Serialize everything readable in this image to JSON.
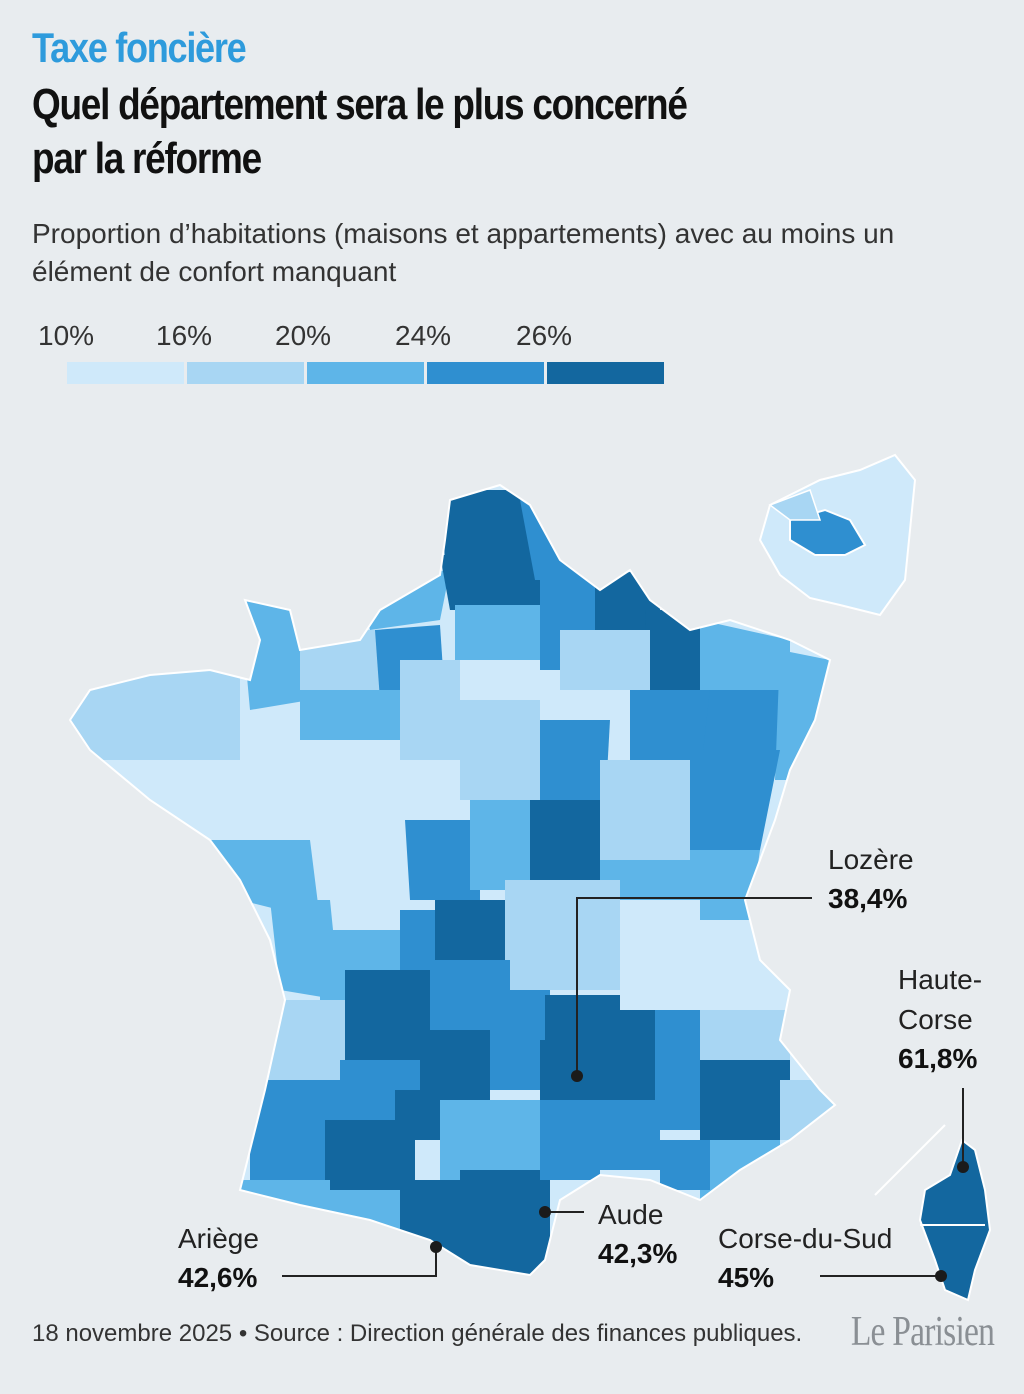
{
  "header": {
    "kicker": "Taxe foncière",
    "headline_line1": "Quel département sera le plus concerné",
    "headline_line2": "par la réforme",
    "subtitle": "Proportion d’habitations (maisons et appartements) avec au moins un élément de confort manquant"
  },
  "legend": {
    "thresholds": [
      "10%",
      "16%",
      "20%",
      "24%",
      "26%"
    ],
    "colors": [
      "#cfe9fa",
      "#a8d6f3",
      "#5eb5e8",
      "#2f8fd0",
      "#13679f"
    ]
  },
  "callouts": {
    "lozere": {
      "name": "Lozère",
      "value": "38,4%"
    },
    "haute_corse": {
      "name1": "Haute-",
      "name2": "Corse",
      "value": "61,8%"
    },
    "aude": {
      "name": "Aude",
      "value": "42,3%"
    },
    "ariege": {
      "name": "Ariège",
      "value": "42,6%"
    },
    "corse_du_sud": {
      "name": "Corse-du-Sud",
      "value": "45%"
    }
  },
  "footer": {
    "source": "18 novembre 2025 • Source : Direction générale des finances publiques.",
    "logo": "Le Parisien"
  }
}
